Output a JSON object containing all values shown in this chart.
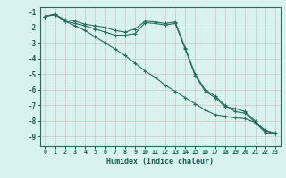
{
  "xlabel": "Humidex (Indice chaleur)",
  "bg_color": "#d8f2f0",
  "grid_color_major": "#c8d8d0",
  "grid_color_minor": "#dce8e4",
  "line_color": "#2a6b5e",
  "xlim": [
    -0.5,
    23.5
  ],
  "ylim": [
    -9.6,
    -0.7
  ],
  "yticks": [
    -1,
    -2,
    -3,
    -4,
    -5,
    -6,
    -7,
    -8,
    -9
  ],
  "xticks": [
    0,
    1,
    2,
    3,
    4,
    5,
    6,
    7,
    8,
    9,
    10,
    11,
    12,
    13,
    14,
    15,
    16,
    17,
    18,
    19,
    20,
    21,
    22,
    23
  ],
  "line1_x": [
    0,
    1,
    2,
    3,
    4,
    5,
    6,
    7,
    8,
    9,
    10,
    11,
    12,
    13,
    14,
    15,
    16,
    17,
    18,
    19,
    20,
    21,
    22,
    23
  ],
  "line1_y": [
    -1.3,
    -1.2,
    -1.5,
    -1.6,
    -1.8,
    -1.9,
    -2.0,
    -2.2,
    -2.3,
    -2.1,
    -1.6,
    -1.65,
    -1.75,
    -1.65,
    -3.3,
    -5.0,
    -6.0,
    -6.4,
    -7.0,
    -7.4,
    -7.5,
    -8.1,
    -8.75,
    -8.8
  ],
  "line2_x": [
    0,
    1,
    2,
    3,
    4,
    5,
    6,
    7,
    8,
    9,
    10,
    11,
    12,
    13,
    14,
    15,
    16,
    17,
    18,
    19,
    20,
    21,
    22,
    23
  ],
  "line2_y": [
    -1.3,
    -1.2,
    -1.6,
    -1.75,
    -1.9,
    -2.1,
    -2.3,
    -2.5,
    -2.5,
    -2.4,
    -1.7,
    -1.75,
    -1.85,
    -1.75,
    -3.4,
    -5.1,
    -6.1,
    -6.5,
    -7.1,
    -7.2,
    -7.4,
    -8.0,
    -8.65,
    -8.75
  ],
  "line3_x": [
    0,
    1,
    2,
    3,
    4,
    5,
    6,
    7,
    8,
    9,
    10,
    11,
    12,
    13,
    14,
    15,
    16,
    17,
    18,
    19,
    20,
    21,
    22,
    23
  ],
  "line3_y": [
    -1.3,
    -1.15,
    -1.6,
    -1.9,
    -2.2,
    -2.6,
    -3.0,
    -3.4,
    -3.8,
    -4.3,
    -4.8,
    -5.2,
    -5.7,
    -6.1,
    -6.5,
    -6.9,
    -7.3,
    -7.6,
    -7.7,
    -7.8,
    -7.85,
    -8.1,
    -8.6,
    -8.8
  ]
}
